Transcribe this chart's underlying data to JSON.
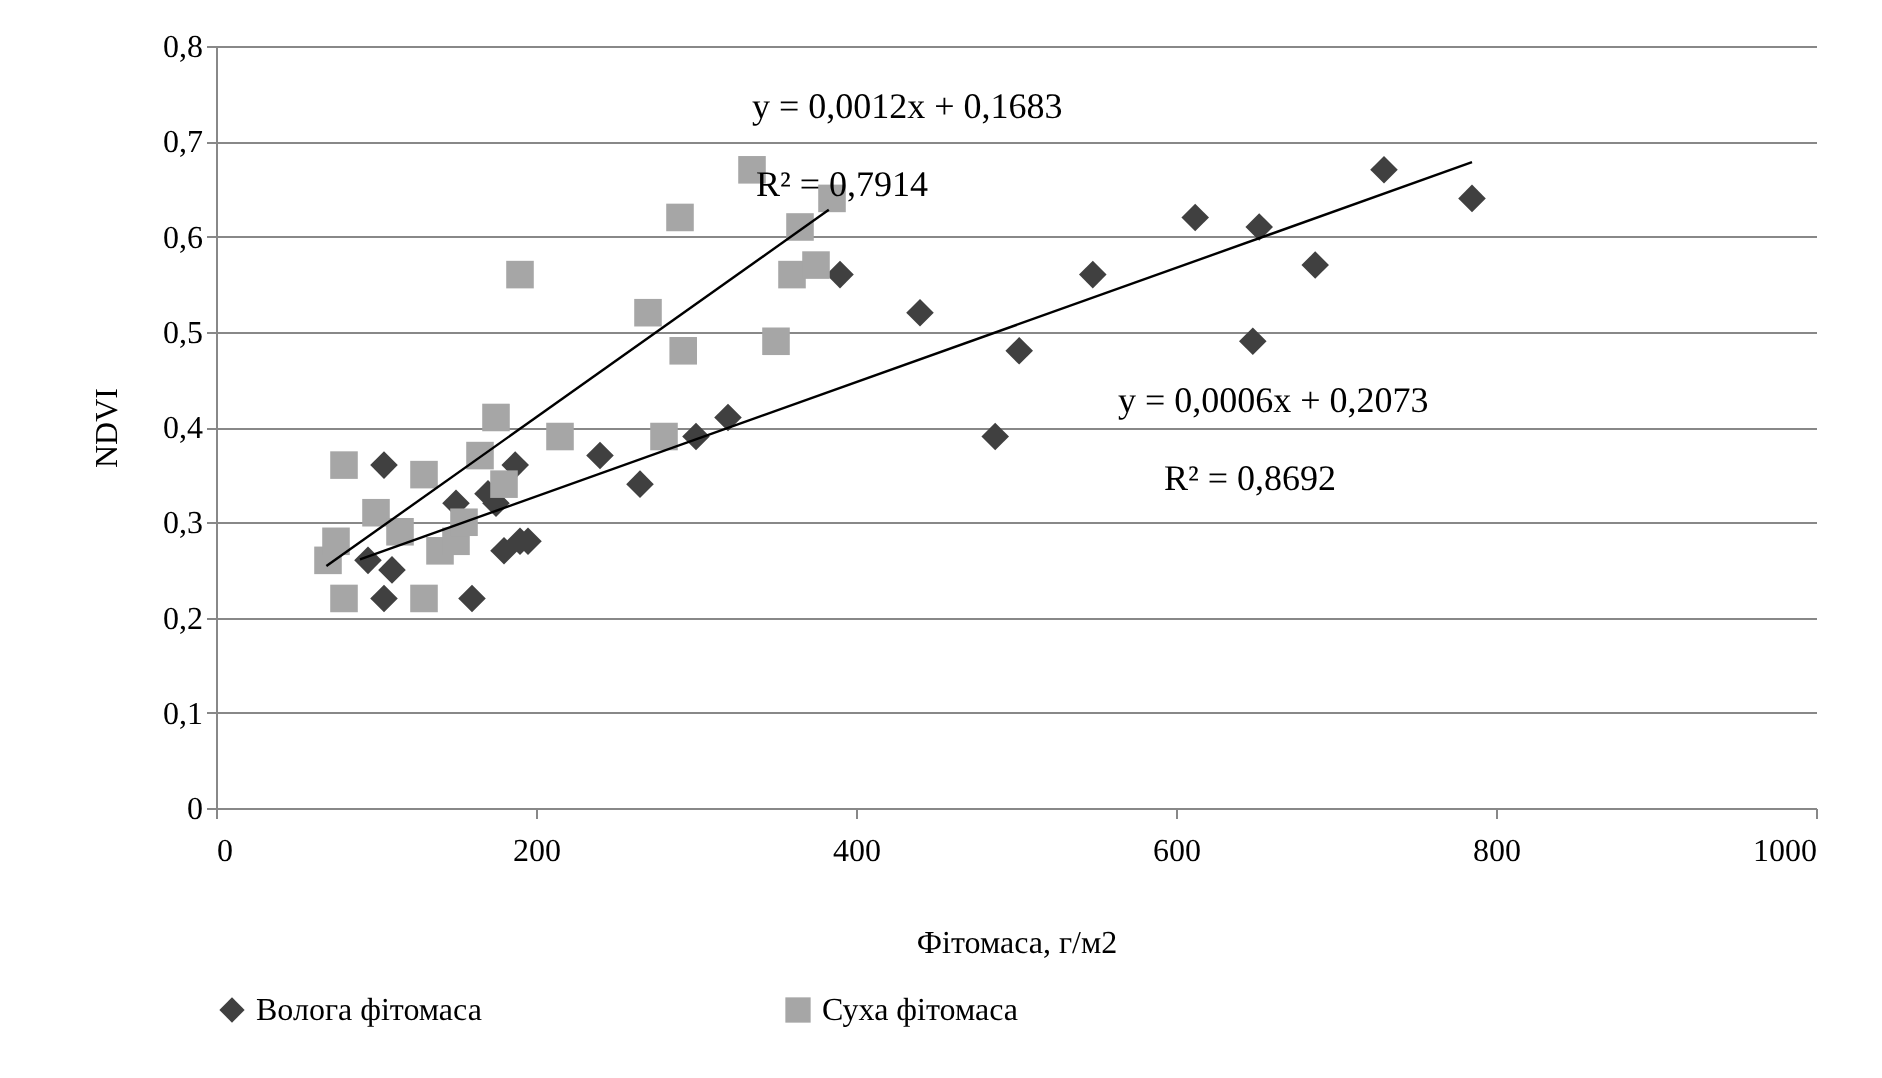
{
  "chart_data": {
    "type": "scatter",
    "xlabel": "Фітомаса, г/м2",
    "ylabel": "NDVI",
    "xlim": [
      0,
      1000
    ],
    "xticks": [
      0,
      200,
      400,
      600,
      800,
      1000
    ],
    "ylim": [
      0,
      0.8
    ],
    "yticks": [
      0,
      {
        "value": 0.1,
        "label": "0,1"
      },
      {
        "value": 0.2,
        "label": "0,2"
      },
      {
        "value": 0.3,
        "label": "0,3"
      },
      {
        "value": 0.4,
        "label": "0,4"
      },
      {
        "value": 0.5,
        "label": "0,5"
      },
      {
        "value": 0.6,
        "label": "0,6"
      },
      {
        "value": 0.7,
        "label": "0,7"
      },
      {
        "value": 0.8,
        "label": "0,8"
      }
    ],
    "grid": "y",
    "legend": "bottom",
    "series": [
      {
        "name": "Волога фітомаса",
        "marker": "diamond",
        "color": "#404040",
        "x": [
          95,
          105,
          105,
          110,
          150,
          160,
          170,
          175,
          180,
          187,
          190,
          195,
          240,
          265,
          300,
          320,
          390,
          440,
          487,
          502,
          548,
          612,
          648,
          652,
          687,
          730,
          785
        ],
        "values": [
          0.26,
          0.36,
          0.22,
          0.25,
          0.32,
          0.22,
          0.33,
          0.32,
          0.27,
          0.36,
          0.28,
          0.28,
          0.37,
          0.34,
          0.39,
          0.41,
          0.56,
          0.52,
          0.39,
          0.48,
          0.56,
          0.62,
          0.49,
          0.61,
          0.57,
          0.67,
          0.64
        ]
      },
      {
        "name": "Суха фітомаса",
        "marker": "square",
        "color": "#a6a6a6",
        "x": [
          70,
          75,
          80,
          80,
          100,
          115,
          130,
          130,
          140,
          150,
          155,
          165,
          175,
          180,
          190,
          215,
          270,
          280,
          290,
          292,
          335,
          350,
          360,
          365,
          375,
          385
        ],
        "values": [
          0.26,
          0.28,
          0.36,
          0.22,
          0.31,
          0.29,
          0.22,
          0.35,
          0.27,
          0.28,
          0.3,
          0.37,
          0.41,
          0.34,
          0.56,
          0.39,
          0.52,
          0.39,
          0.62,
          0.48,
          0.67,
          0.49,
          0.56,
          0.61,
          0.57,
          0.64
        ]
      },
      {
        "type": "line",
        "marker": "none",
        "line_style": "solid",
        "color": "#000000",
        "x": [
          90,
          785
        ],
        "values": [
          0.261,
          0.678
        ]
      },
      {
        "type": "line",
        "marker": "none",
        "line_style": "solid",
        "color": "#000000",
        "x": [
          69,
          383
        ],
        "values": [
          0.254,
          0.628
        ]
      }
    ],
    "annotations": [
      "y = 0,0012x + 0,1683",
      "R² = 0,7914",
      "y = 0,0006x + 0,2073",
      "R² = 0,8692"
    ]
  }
}
